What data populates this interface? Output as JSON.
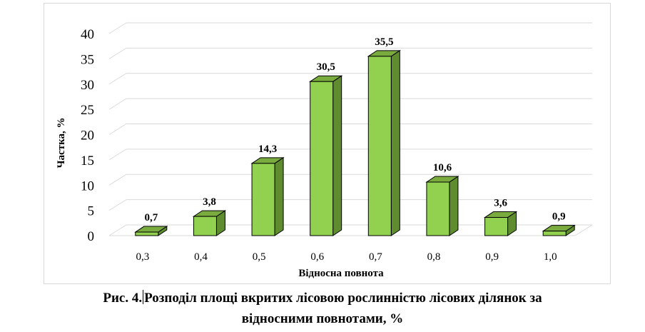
{
  "chart_data": {
    "type": "bar",
    "style": "3d-column",
    "categories": [
      "0,3",
      "0,4",
      "0,5",
      "0,6",
      "0,7",
      "0,8",
      "0,9",
      "1,0"
    ],
    "values": [
      0.7,
      3.8,
      14.3,
      30.5,
      35.5,
      10.6,
      3.6,
      0.9
    ],
    "value_labels": [
      "0,7",
      "3,8",
      "14,3",
      "30,5",
      "35,5",
      "10,6",
      "3,6",
      "0,9"
    ],
    "y_ticks": [
      "0",
      "5",
      "10",
      "15",
      "20",
      "25",
      "30",
      "35",
      "40"
    ],
    "ylim": [
      0,
      40
    ],
    "xlabel": "Відносна повнота",
    "ylabel": "Частка, %",
    "grid": true,
    "legend": "none",
    "colors": {
      "front": "#92d050",
      "side": "#5e8c2e",
      "top": "#7aab3f",
      "outline": "#000000",
      "grid": "#d9d9d9"
    }
  },
  "caption": {
    "line1_prefix": "Рис. 4.",
    "line1_rest": "Розподіл площі вкритих лісовою рослинністю лісових ділянок за",
    "line2": "відносними повнотами, %"
  }
}
